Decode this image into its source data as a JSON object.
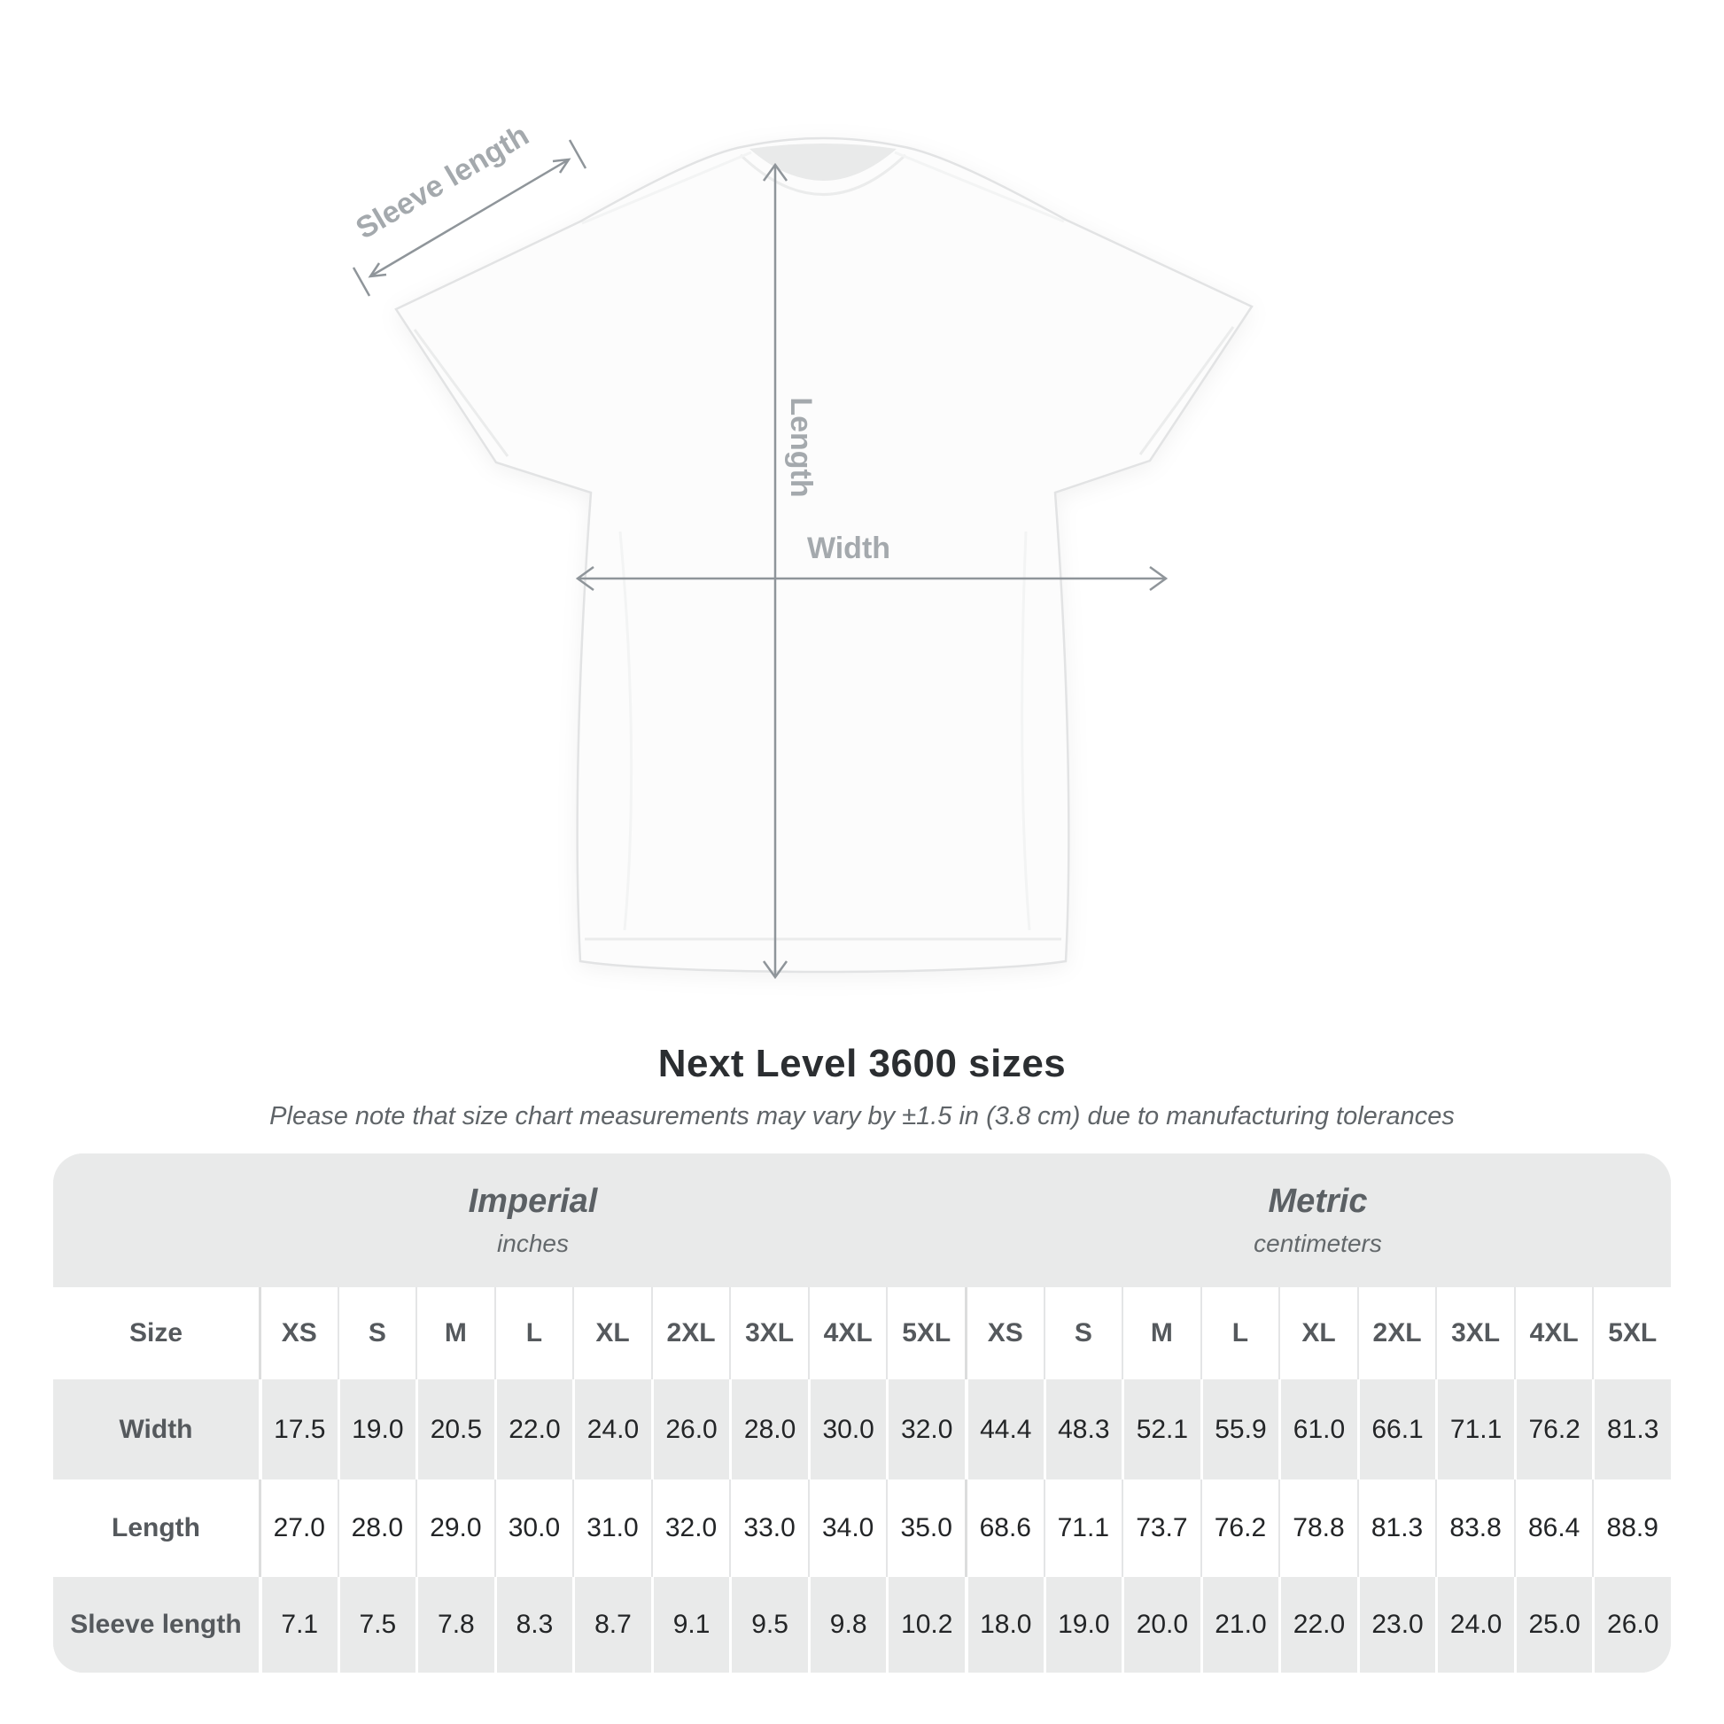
{
  "page": {
    "background": "#ffffff"
  },
  "diagram": {
    "sleeve_length_label": "Sleeve length",
    "length_label": "Length",
    "width_label": "Width",
    "arrow_color": "#8f959a",
    "label_color": "#a4a9ad"
  },
  "title": "Next Level 3600 sizes",
  "subtitle": "Please note that size chart measurements may vary by ±1.5 in (3.8 cm) due to manufacturing tolerances",
  "chart_data": {
    "type": "table",
    "title": "Next Level 3600 sizes",
    "sections": [
      {
        "name": "Imperial",
        "unit": "inches"
      },
      {
        "name": "Metric",
        "unit": "centimeters"
      }
    ],
    "size_header_label": "Size",
    "columns": [
      "XS",
      "S",
      "M",
      "L",
      "XL",
      "2XL",
      "3XL",
      "4XL",
      "5XL"
    ],
    "rows": [
      {
        "label": "Width",
        "imperial": [
          "17.5",
          "19.0",
          "20.5",
          "22.0",
          "24.0",
          "26.0",
          "28.0",
          "30.0",
          "32.0"
        ],
        "metric": [
          "44.4",
          "48.3",
          "52.1",
          "55.9",
          "61.0",
          "66.1",
          "71.1",
          "76.2",
          "81.3"
        ]
      },
      {
        "label": "Length",
        "imperial": [
          "27.0",
          "28.0",
          "29.0",
          "30.0",
          "31.0",
          "32.0",
          "33.0",
          "34.0",
          "35.0"
        ],
        "metric": [
          "68.6",
          "71.1",
          "73.7",
          "76.2",
          "78.8",
          "81.3",
          "83.8",
          "86.4",
          "88.9"
        ]
      },
      {
        "label": "Sleeve length",
        "imperial": [
          "7.1",
          "7.5",
          "7.8",
          "8.3",
          "8.7",
          "9.1",
          "9.5",
          "9.8",
          "10.2"
        ],
        "metric": [
          "18.0",
          "19.0",
          "20.0",
          "21.0",
          "22.0",
          "23.0",
          "24.0",
          "25.0",
          "26.0"
        ]
      }
    ]
  },
  "colors": {
    "panel_gray": "#e9eaea",
    "header_text": "#5b6064",
    "value_text": "#232527",
    "title_text": "#2b2e31",
    "subtitle_text": "#5f6468"
  }
}
